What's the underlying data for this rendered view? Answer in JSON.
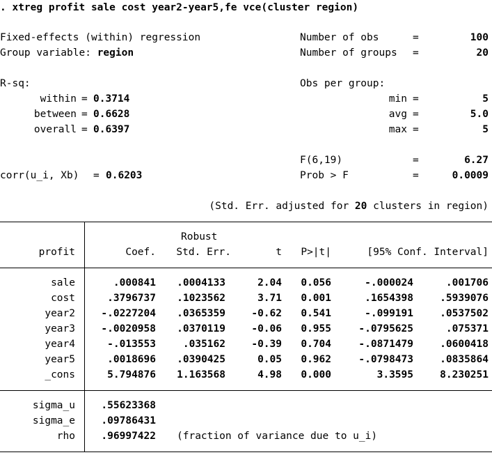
{
  "command": ". xtreg profit sale cost year2-year5,fe vce(cluster region)",
  "header": {
    "model_label": "Fixed-effects (within) regression",
    "group_variable_label": "Group variable:",
    "group_variable": "region",
    "nobs_label": "Number of obs",
    "nobs": "100",
    "ngroups_label": "Number of groups",
    "ngroups": "20",
    "rsq_label": "R-sq:",
    "within_label": "within",
    "within": "0.3714",
    "between_label": "between",
    "between": "0.6628",
    "overall_label": "overall",
    "overall": "0.6397",
    "obs_per_group_label": "Obs per group:",
    "min_label": "min",
    "min": "5",
    "avg_label": "avg",
    "avg": "5.0",
    "max_label": "max",
    "max": "5",
    "f_label": "F(6,19)",
    "f_value": "6.27",
    "corr_label": "corr(u_i, Xb)",
    "corr_value": "0.6203",
    "probf_label": "Prob > F",
    "probf_value": "0.0009",
    "eq": "=",
    "se_note_prefix": "(Std. Err. adjusted for",
    "se_note_count": "20",
    "se_note_suffix": "clusters in region)"
  },
  "table": {
    "depvar": "profit",
    "robust_label": "Robust",
    "columns": [
      "Coef.",
      "Std. Err.",
      "t",
      "P>|t|",
      "[95% Conf. Interval]"
    ],
    "rows": [
      {
        "var": "sale",
        "coef": ".000841",
        "se": ".0004133",
        "t": "2.04",
        "p": "0.056",
        "lo": "-.000024",
        "hi": ".001706"
      },
      {
        "var": "cost",
        "coef": ".3796737",
        "se": ".1023562",
        "t": "3.71",
        "p": "0.001",
        "lo": ".1654398",
        "hi": ".5939076"
      },
      {
        "var": "year2",
        "coef": "-.0227204",
        "se": ".0365359",
        "t": "-0.62",
        "p": "0.541",
        "lo": "-.099191",
        "hi": ".0537502"
      },
      {
        "var": "year3",
        "coef": "-.0020958",
        "se": ".0370119",
        "t": "-0.06",
        "p": "0.955",
        "lo": "-.0795625",
        "hi": ".075371"
      },
      {
        "var": "year4",
        "coef": "-.013553",
        "se": ".035162",
        "t": "-0.39",
        "p": "0.704",
        "lo": "-.0871479",
        "hi": ".0600418"
      },
      {
        "var": "year5",
        "coef": ".0018696",
        "se": ".0390425",
        "t": "0.05",
        "p": "0.962",
        "lo": "-.0798473",
        "hi": ".0835864"
      },
      {
        "var": "_cons",
        "coef": "5.794876",
        "se": "1.163568",
        "t": "4.98",
        "p": "0.000",
        "lo": "3.3595",
        "hi": "8.230251"
      }
    ],
    "sigma_u_label": "sigma_u",
    "sigma_u": ".55623368",
    "sigma_e_label": "sigma_e",
    "sigma_e": ".09786431",
    "rho_label": "rho",
    "rho": ".96997422",
    "rho_note": "(fraction of variance due to u_i)"
  }
}
